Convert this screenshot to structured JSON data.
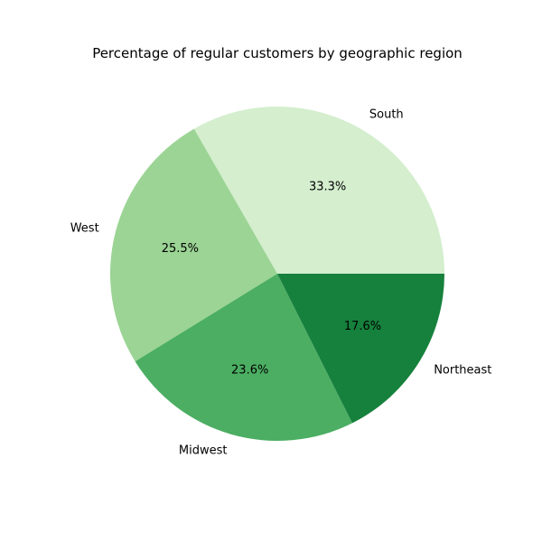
{
  "chart_data": {
    "type": "pie",
    "title": "Percentage of regular customers by geographic region",
    "categories": [
      "South",
      "West",
      "Midwest",
      "Northeast"
    ],
    "values": [
      33.3,
      25.5,
      23.6,
      17.6
    ],
    "value_labels": [
      "33.3%",
      "25.5%",
      "23.6%",
      "17.6%"
    ],
    "colors": [
      "#d4eece",
      "#9bd494",
      "#4bae62",
      "#16813c"
    ],
    "start_angle_deg": 0,
    "direction": "counterclockwise"
  }
}
